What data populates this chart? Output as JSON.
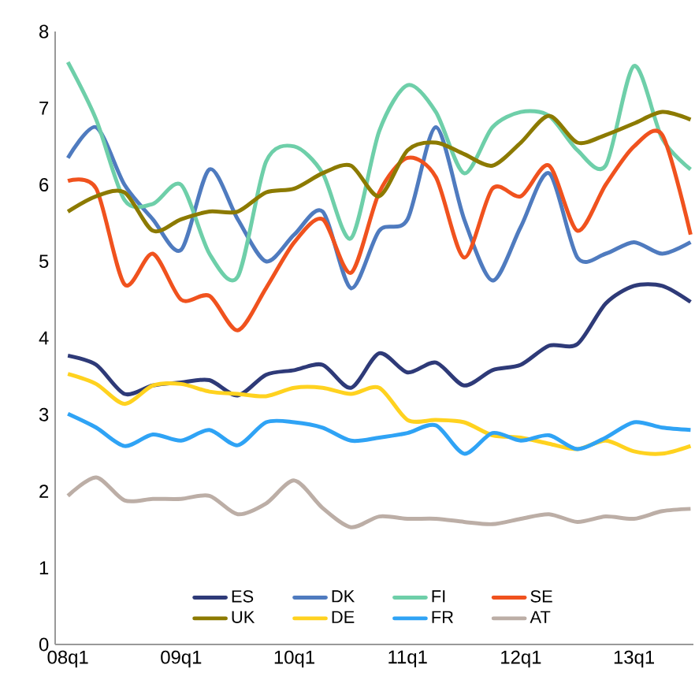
{
  "chart_data": {
    "type": "line",
    "categories": [
      "08q1",
      null,
      null,
      null,
      "09q1",
      null,
      null,
      null,
      "10q1",
      null,
      null,
      null,
      "11q1",
      null,
      null,
      null,
      "12q1",
      null,
      null,
      null,
      "13q1",
      null,
      null
    ],
    "series": [
      {
        "name": "ES",
        "color": "#2e3a78",
        "values": [
          3.77,
          3.65,
          3.27,
          3.38,
          3.42,
          3.45,
          3.25,
          3.52,
          3.58,
          3.65,
          3.35,
          3.8,
          3.55,
          3.68,
          3.38,
          3.58,
          3.65,
          3.9,
          3.92,
          4.45,
          4.68,
          4.68,
          4.47
        ]
      },
      {
        "name": "DK",
        "color": "#4f7bbf",
        "values": [
          6.35,
          6.75,
          6.0,
          5.55,
          5.15,
          6.2,
          5.55,
          5.0,
          5.35,
          5.65,
          4.65,
          5.4,
          5.55,
          6.75,
          5.55,
          4.75,
          5.45,
          6.15,
          5.05,
          5.1,
          5.25,
          5.1,
          5.25
        ]
      },
      {
        "name": "FI",
        "color": "#6ecfa9",
        "values": [
          7.6,
          6.85,
          5.8,
          5.75,
          6.0,
          5.1,
          4.8,
          6.3,
          6.5,
          6.15,
          5.3,
          6.7,
          7.3,
          6.95,
          6.15,
          6.75,
          6.95,
          6.9,
          6.45,
          6.25,
          7.55,
          6.6,
          6.2
        ]
      },
      {
        "name": "SE",
        "color": "#f0521e",
        "values": [
          6.05,
          5.95,
          4.7,
          5.1,
          4.5,
          4.55,
          4.1,
          4.65,
          5.25,
          5.55,
          4.85,
          5.9,
          6.35,
          6.1,
          5.05,
          5.95,
          5.85,
          6.25,
          5.4,
          6.0,
          6.5,
          6.65,
          5.35
        ]
      },
      {
        "name": "UK",
        "color": "#8c7a00",
        "values": [
          5.65,
          5.85,
          5.9,
          5.4,
          5.55,
          5.65,
          5.65,
          5.9,
          5.95,
          6.15,
          6.25,
          5.85,
          6.45,
          6.55,
          6.4,
          6.25,
          6.55,
          6.9,
          6.55,
          6.65,
          6.8,
          6.95,
          6.85
        ]
      },
      {
        "name": "DE",
        "color": "#ffd21f",
        "values": [
          3.53,
          3.4,
          3.14,
          3.38,
          3.4,
          3.3,
          3.27,
          3.24,
          3.35,
          3.35,
          3.27,
          3.35,
          2.93,
          2.93,
          2.9,
          2.73,
          2.7,
          2.62,
          2.55,
          2.66,
          2.52,
          2.49,
          2.59
        ]
      },
      {
        "name": "FR",
        "color": "#2fa3f5",
        "values": [
          3.01,
          2.83,
          2.59,
          2.74,
          2.66,
          2.8,
          2.6,
          2.9,
          2.9,
          2.83,
          2.66,
          2.7,
          2.76,
          2.86,
          2.49,
          2.76,
          2.66,
          2.73,
          2.55,
          2.7,
          2.9,
          2.83,
          2.8
        ]
      },
      {
        "name": "AT",
        "color": "#bcaea6",
        "values": [
          1.94,
          2.18,
          1.88,
          1.9,
          1.9,
          1.94,
          1.7,
          1.84,
          2.14,
          1.78,
          1.53,
          1.67,
          1.64,
          1.64,
          1.6,
          1.57,
          1.64,
          1.7,
          1.6,
          1.67,
          1.64,
          1.74,
          1.77
        ]
      }
    ],
    "ylim": [
      0,
      8
    ],
    "yticks": [
      0,
      1,
      2,
      3,
      4,
      5,
      6,
      7,
      8
    ],
    "legend": "bottom"
  }
}
